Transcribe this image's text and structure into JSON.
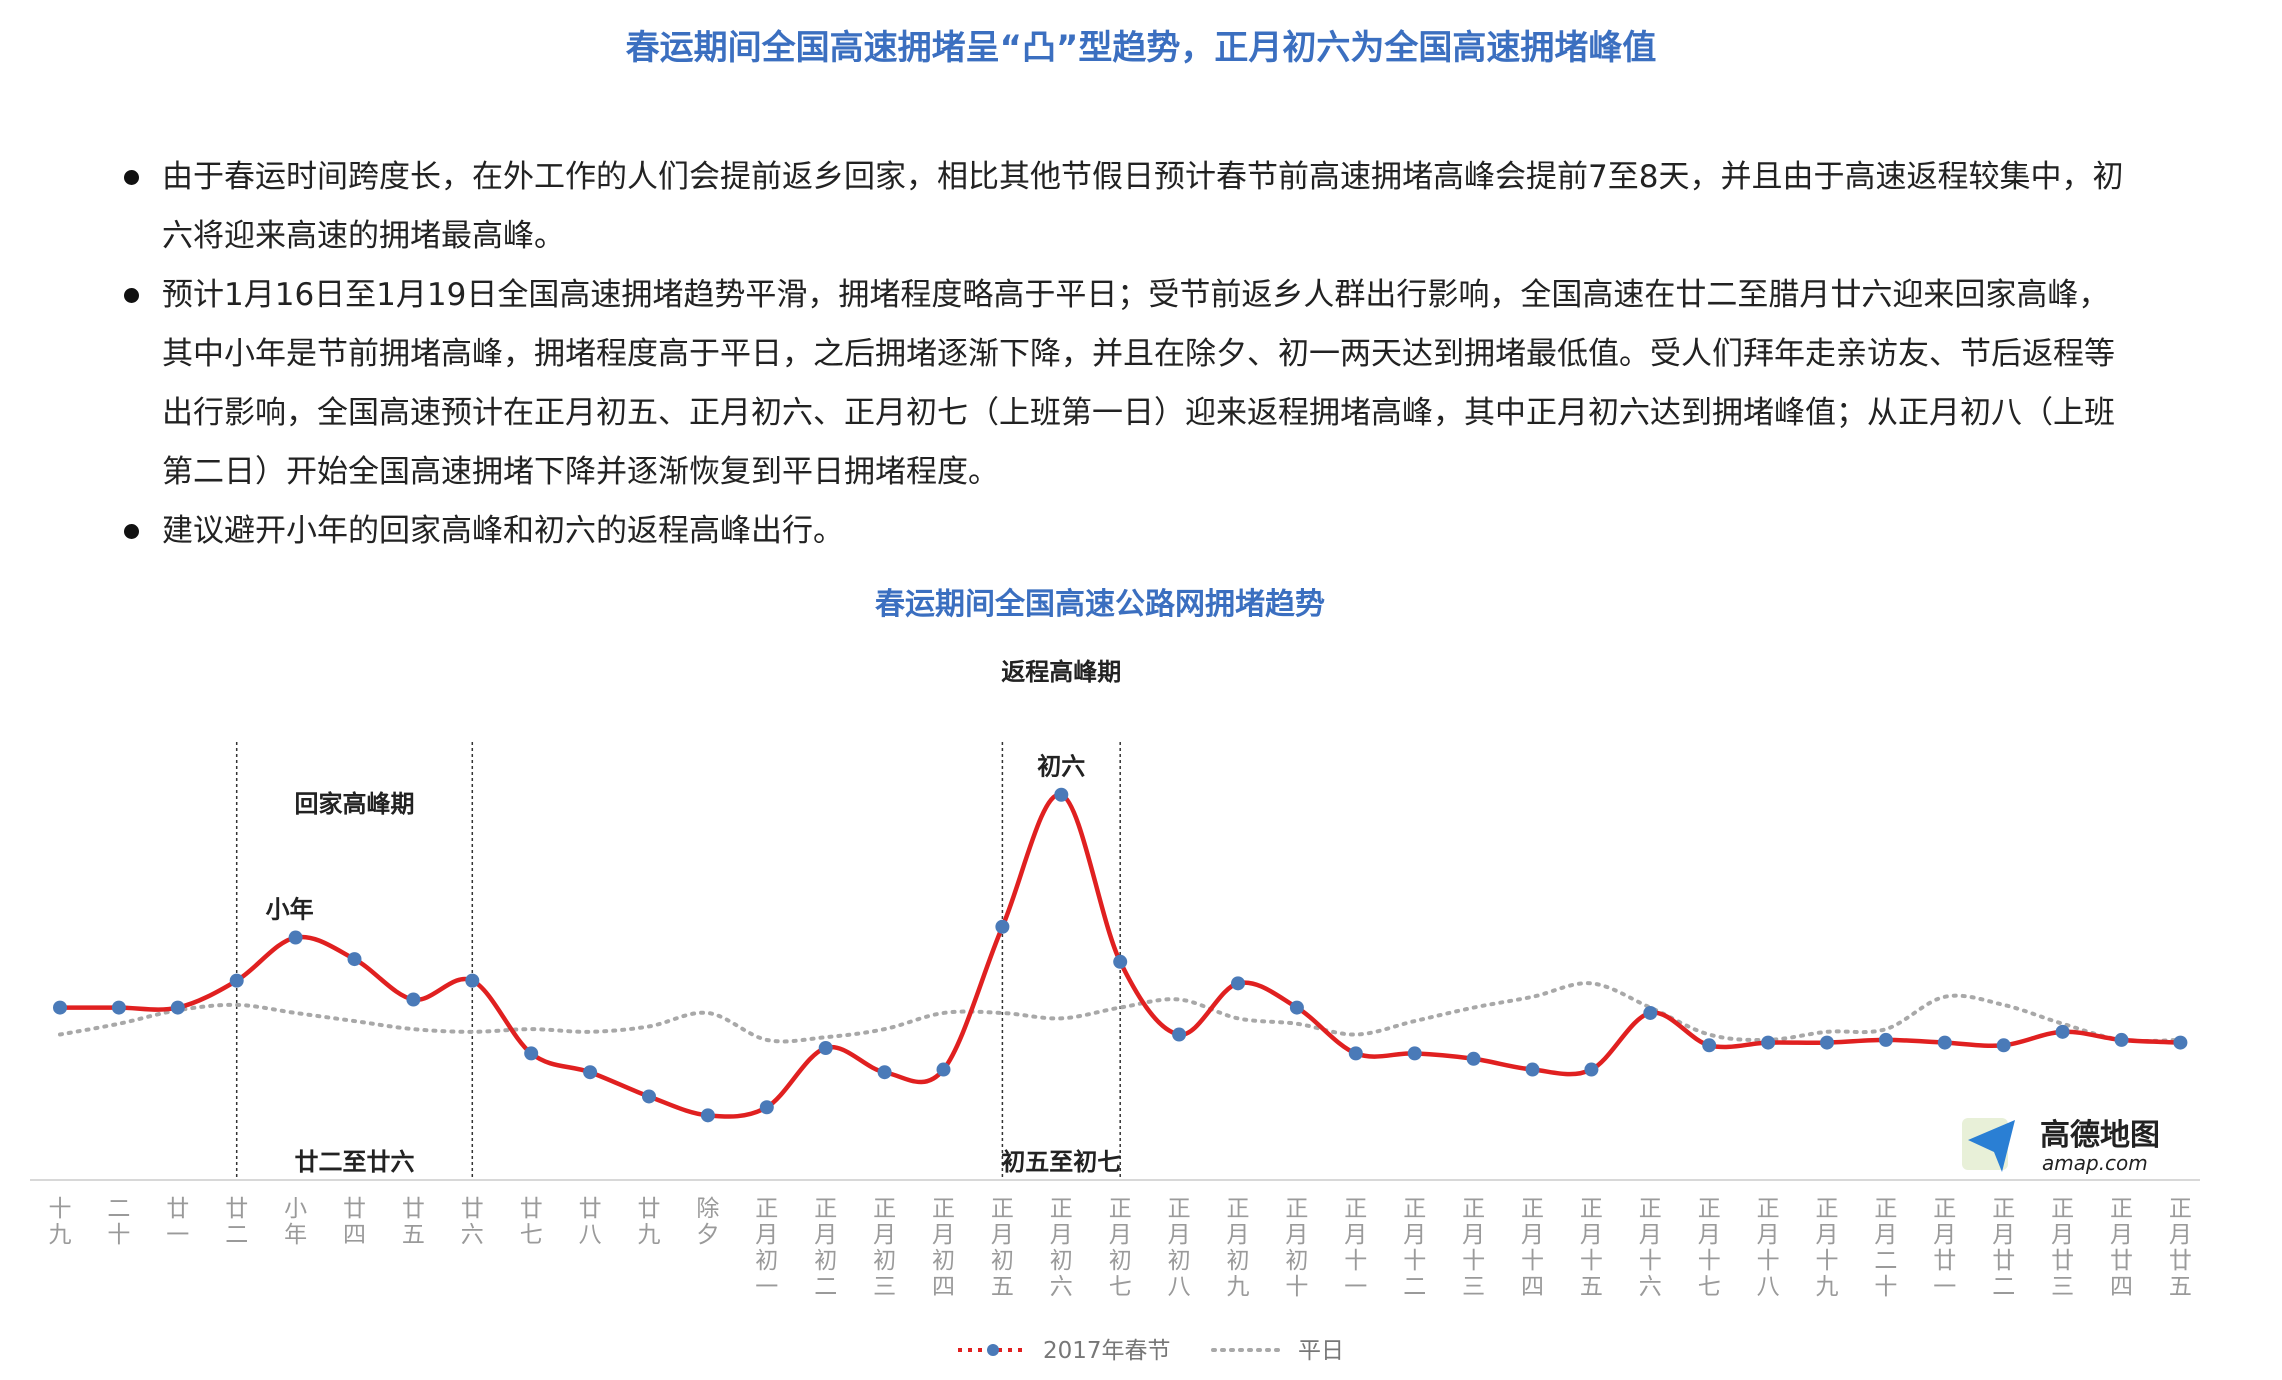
{
  "page": {
    "title": "春运期间全国高速拥堵呈“凸”型趋势，正月初六为全国高速拥堵峰值",
    "bullets": [
      "由于春运时间跨度长，在外工作的人们会提前返乡回家，相比其他节假日预计春节前高速拥堵高峰会提前7至8天，并且由于高速返程较集中，初六将迎来高速的拥堵最高峰。",
      "预计1月16日至1月19日全国高速拥堵趋势平滑，拥堵程度略高于平日；受节前返乡人群出行影响，全国高速在廿二至腊月廿六迎来回家高峰，其中小年是节前拥堵高峰，拥堵程度高于平日，之后拥堵逐渐下降，并且在除夕、初一两天达到拥堵最低值。受人们拜年走亲访友、节后返程等出行影响，全国高速预计在正月初五、正月初六、正月初七（上班第一日）迎来返程拥堵高峰，其中正月初六达到拥堵峰值；从正月初八（上班第二日）开始全国高速拥堵下降并逐渐恢复到平日拥堵程度。",
      "建议避开小年的回家高峰和初六的返程高峰出行。"
    ]
  },
  "chart_data": {
    "type": "line",
    "title": "春运期间全国高速公路网拥堵趋势",
    "categories": [
      "十九",
      "二十",
      "廿一",
      "廿二",
      "小年",
      "廿四",
      "廿五",
      "廿六",
      "廿七",
      "廿八",
      "廿九",
      "除夕",
      "正月初一",
      "正月初二",
      "正月初三",
      "正月初四",
      "正月初五",
      "正月初六",
      "正月初七",
      "正月初八",
      "正月初九",
      "正月初十",
      "正月十一",
      "正月十二",
      "正月十三",
      "正月十四",
      "正月十五",
      "正月十六",
      "正月十七",
      "正月十八",
      "正月十九",
      "正月二十",
      "正月廿一",
      "正月廿二",
      "正月廿三",
      "正月廿四",
      "正月廿五"
    ],
    "series": [
      {
        "name": "2017年春节",
        "color": "#e02020",
        "marker_color": "#4a7ab8",
        "style": "solid",
        "values": [
          1.44,
          1.44,
          1.44,
          1.54,
          1.7,
          1.62,
          1.47,
          1.54,
          1.27,
          1.2,
          1.11,
          1.04,
          1.07,
          1.29,
          1.2,
          1.21,
          1.74,
          2.23,
          1.61,
          1.34,
          1.53,
          1.44,
          1.27,
          1.27,
          1.25,
          1.21,
          1.21,
          1.42,
          1.3,
          1.31,
          1.31,
          1.32,
          1.31,
          1.3,
          1.35,
          1.32,
          1.31
        ]
      },
      {
        "name": "平日",
        "color": "#a8a8a8",
        "style": "dotted",
        "values": [
          1.34,
          1.38,
          1.43,
          1.45,
          1.42,
          1.39,
          1.36,
          1.35,
          1.36,
          1.35,
          1.37,
          1.42,
          1.32,
          1.33,
          1.36,
          1.42,
          1.42,
          1.4,
          1.44,
          1.47,
          1.4,
          1.38,
          1.34,
          1.39,
          1.44,
          1.48,
          1.53,
          1.44,
          1.34,
          1.32,
          1.35,
          1.36,
          1.48,
          1.45,
          1.38,
          1.32,
          1.32
        ]
      }
    ],
    "ylim": [
      0.8,
      2.5
    ],
    "peak_label": "初六",
    "annotations": [
      {
        "text": "小年",
        "at": 4,
        "kind": "point"
      },
      {
        "text": "初六",
        "at": 17,
        "kind": "point"
      },
      {
        "text": "回家高峰期",
        "from": 3,
        "to": 7,
        "kind": "region-top"
      },
      {
        "text": "廿二至廿六",
        "from": 3,
        "to": 7,
        "kind": "region-bottom"
      },
      {
        "text": "返程高峰期",
        "from": 16,
        "to": 18,
        "kind": "region-top"
      },
      {
        "text": "初五至初七",
        "from": 16,
        "to": 18,
        "kind": "region-bottom"
      }
    ],
    "legend_position": "bottom",
    "grid": false
  },
  "logo": {
    "name": "高德地图",
    "sub": "amap.com"
  }
}
